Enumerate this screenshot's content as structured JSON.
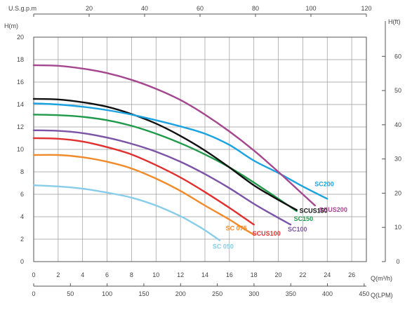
{
  "chart_data": {
    "type": "line",
    "grid": true,
    "axes": {
      "top": {
        "label": "U.S.g.p.m",
        "ticks": [
          "0",
          "20",
          "40",
          "60",
          "80",
          "100",
          "120"
        ],
        "range": [
          0,
          120
        ]
      },
      "left": {
        "label": "H(m)",
        "ticks": [
          "0",
          "2",
          "4",
          "6",
          "8",
          "10",
          "12",
          "14",
          "16",
          "18",
          "20"
        ],
        "range": [
          0,
          20
        ]
      },
      "right": {
        "label": "H(ft)",
        "ticks": [
          "0",
          "10",
          "20",
          "30",
          "40",
          "50",
          "60"
        ],
        "range": [
          0,
          65.6
        ]
      },
      "bottom": {
        "label": "Q(m³/h)",
        "ticks": [
          "0",
          "2",
          "4",
          "6",
          "8",
          "10",
          "12",
          "14",
          "16",
          "18",
          "20",
          "22",
          "24",
          "26"
        ],
        "range": [
          0,
          27.2
        ]
      },
      "bottom2": {
        "label": "Q(LPM)",
        "ticks": [
          "0",
          "50",
          "100",
          "150",
          "200",
          "250",
          "300",
          "350",
          "400",
          "450"
        ],
        "range": [
          0,
          453
        ]
      }
    },
    "series": [
      {
        "name": "SC 050",
        "color": "#87cdea",
        "x": [
          0,
          2,
          4,
          6,
          8,
          10,
          12,
          13,
          14,
          15.2
        ],
        "y": [
          6.8,
          6.7,
          6.5,
          6.15,
          5.7,
          5.0,
          4.05,
          3.45,
          2.8,
          1.9
        ]
      },
      {
        "name": "SC 075",
        "color": "#f08a2a",
        "x": [
          0,
          2,
          4,
          6,
          8,
          10,
          12,
          14,
          16,
          17,
          18
        ],
        "y": [
          9.5,
          9.5,
          9.3,
          8.9,
          8.3,
          7.4,
          6.3,
          5.0,
          3.75,
          3.05,
          2.4
        ]
      },
      {
        "name": "SCUS100",
        "color": "#e03030",
        "x": [
          0,
          2,
          4,
          6,
          8,
          10,
          12,
          14,
          16,
          17,
          18
        ],
        "y": [
          11.0,
          10.95,
          10.7,
          10.2,
          9.55,
          8.6,
          7.5,
          6.2,
          4.8,
          4.05,
          3.3
        ]
      },
      {
        "name": "SC100",
        "color": "#7b54a6",
        "x": [
          0,
          2,
          4,
          6,
          8,
          10,
          12,
          14,
          16,
          18,
          20,
          21
        ],
        "y": [
          11.7,
          11.65,
          11.45,
          11.05,
          10.5,
          9.8,
          8.9,
          7.8,
          6.55,
          5.15,
          3.9,
          3.3
        ]
      },
      {
        "name": "SC150",
        "color": "#1f9a4a",
        "x": [
          0,
          2,
          4,
          6,
          8,
          10,
          12,
          14,
          16,
          18,
          20,
          21.5
        ],
        "y": [
          13.1,
          13.05,
          12.9,
          12.6,
          12.1,
          11.4,
          10.55,
          9.55,
          8.4,
          7.05,
          5.6,
          4.5
        ]
      },
      {
        "name": "SCUS150",
        "color": "#111111",
        "x": [
          0,
          2,
          4,
          6,
          8,
          10,
          12,
          14,
          16,
          18,
          20,
          21.5
        ],
        "y": [
          14.5,
          14.45,
          14.2,
          13.8,
          13.15,
          12.3,
          11.2,
          9.9,
          8.4,
          6.8,
          5.5,
          4.6
        ]
      },
      {
        "name": "SC200",
        "color": "#1aa3e0",
        "x": [
          0,
          2,
          4,
          6,
          8,
          10,
          12,
          14,
          16,
          18,
          20,
          22,
          24
        ],
        "y": [
          14.1,
          14.0,
          13.8,
          13.5,
          13.1,
          12.6,
          12.05,
          11.4,
          10.4,
          9.0,
          7.9,
          6.7,
          5.6
        ]
      },
      {
        "name": "SCUS200",
        "color": "#a4478e",
        "x": [
          0,
          2,
          4,
          6,
          8,
          10,
          12,
          14,
          16,
          18,
          20,
          22,
          23
        ],
        "y": [
          17.5,
          17.45,
          17.2,
          16.8,
          16.2,
          15.4,
          14.4,
          13.1,
          11.6,
          9.9,
          8.0,
          6.0,
          5.0
        ]
      }
    ]
  }
}
